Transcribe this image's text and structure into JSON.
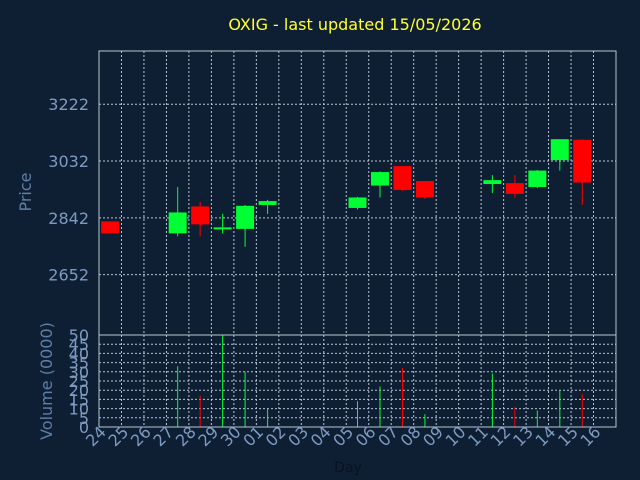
{
  "colors": {
    "background": "#0f1f33",
    "title": "#ffff33",
    "axis_text": "#7d9bc2",
    "grid": "#b8c4d2",
    "up": "#00ff33",
    "down": "#ff0000"
  },
  "chart_data": {
    "type": "candlestick",
    "title": "OXIG - last updated 15/05/2026",
    "xlabel": "Day",
    "grid": true,
    "x_ticks": [
      "24",
      "25",
      "26",
      "27",
      "28",
      "29",
      "30",
      "01",
      "02",
      "03",
      "04",
      "05",
      "06",
      "07",
      "08",
      "09",
      "10",
      "11",
      "12",
      "13",
      "14",
      "15",
      "16"
    ],
    "price_panel": {
      "ylabel": "Price",
      "ylim": [
        2450,
        3400
      ],
      "yticks": [
        2652,
        2842,
        3032,
        3222
      ],
      "candles": [
        {
          "day": "24",
          "open": 2830,
          "close": 2790,
          "high": 2830,
          "low": 2790
        },
        {
          "day": "27",
          "open": 2790,
          "close": 2860,
          "high": 2945,
          "low": 2780
        },
        {
          "day": "28",
          "open": 2880,
          "close": 2820,
          "high": 2895,
          "low": 2780
        },
        {
          "day": "29",
          "open": 2805,
          "close": 2810,
          "high": 2855,
          "low": 2790
        },
        {
          "day": "30",
          "open": 2805,
          "close": 2882,
          "high": 2885,
          "low": 2745
        },
        {
          "day": "01",
          "open": 2885,
          "close": 2898,
          "high": 2902,
          "low": 2855
        },
        {
          "day": "05",
          "open": 2875,
          "close": 2910,
          "high": 2912,
          "low": 2870
        },
        {
          "day": "06",
          "open": 2950,
          "close": 2995,
          "high": 2997,
          "low": 2910
        },
        {
          "day": "07",
          "open": 3015,
          "close": 2935,
          "high": 3015,
          "low": 2932
        },
        {
          "day": "08",
          "open": 2965,
          "close": 2910,
          "high": 2965,
          "low": 2905
        },
        {
          "day": "11",
          "open": 2955,
          "close": 2968,
          "high": 2985,
          "low": 2925
        },
        {
          "day": "12",
          "open": 2958,
          "close": 2922,
          "high": 2985,
          "low": 2910
        },
        {
          "day": "13",
          "open": 2945,
          "close": 3000,
          "high": 3002,
          "low": 2942
        },
        {
          "day": "14",
          "open": 3035,
          "close": 3105,
          "high": 3105,
          "low": 3000
        },
        {
          "day": "15",
          "open": 3103,
          "close": 2960,
          "high": 3105,
          "low": 2885
        }
      ]
    },
    "volume_panel": {
      "ylabel": "Volume (0000)",
      "ylim": [
        0,
        50
      ],
      "yticks": [
        0,
        5,
        10,
        15,
        20,
        25,
        30,
        35,
        40,
        45,
        50
      ],
      "bars": [
        {
          "day": "27",
          "value": 33,
          "direction": "up"
        },
        {
          "day": "28",
          "value": 17,
          "direction": "down"
        },
        {
          "day": "29",
          "value": 50,
          "direction": "up"
        },
        {
          "day": "30",
          "value": 30,
          "direction": "up"
        },
        {
          "day": "01",
          "value": 10,
          "direction": "up"
        },
        {
          "day": "05",
          "value": 14,
          "direction": "up"
        },
        {
          "day": "06",
          "value": 22,
          "direction": "up"
        },
        {
          "day": "07",
          "value": 32,
          "direction": "down"
        },
        {
          "day": "08",
          "value": 7,
          "direction": "up"
        },
        {
          "day": "11",
          "value": 29,
          "direction": "up"
        },
        {
          "day": "12",
          "value": 11,
          "direction": "down"
        },
        {
          "day": "13",
          "value": 9,
          "direction": "up"
        },
        {
          "day": "14",
          "value": 20,
          "direction": "up"
        },
        {
          "day": "15",
          "value": 18,
          "direction": "down"
        }
      ]
    }
  }
}
